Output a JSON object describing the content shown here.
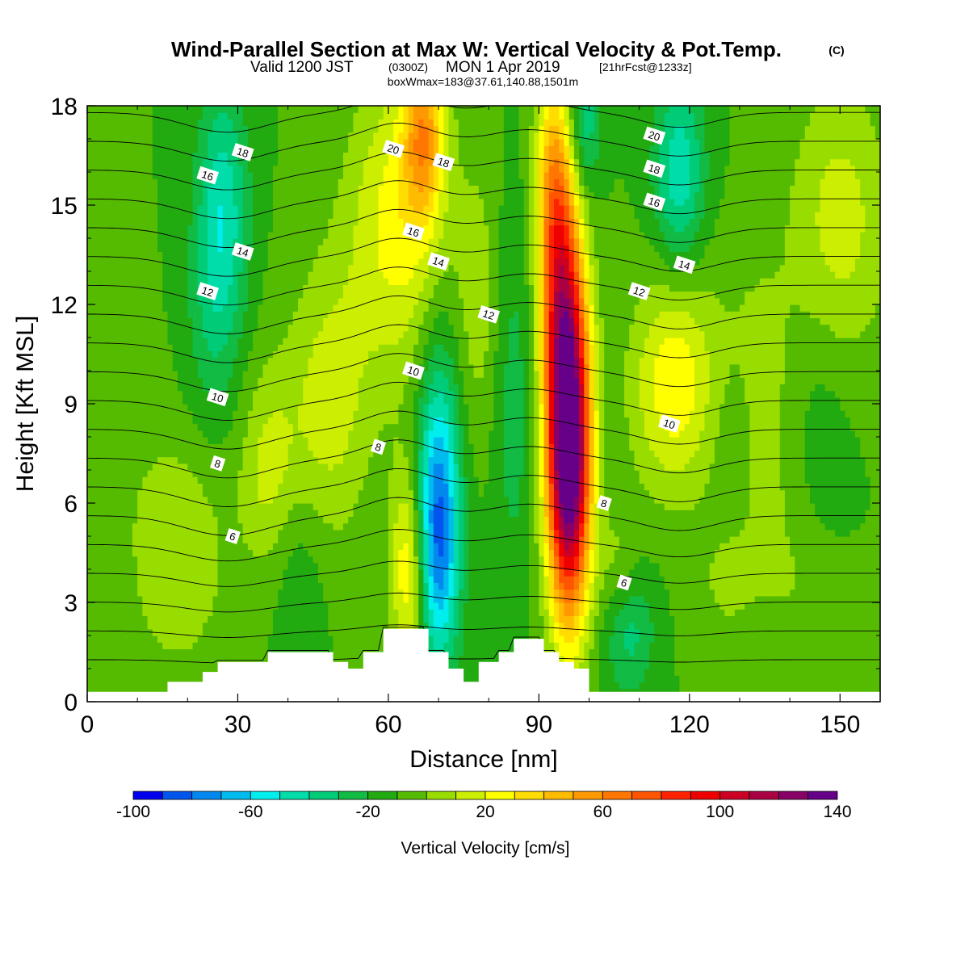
{
  "chart_data": {
    "type": "heatmap",
    "title": {
      "main": "Wind-Parallel Section at Max W: Vertical Velocity & Pot.Temp.",
      "copyright": "(C)",
      "valid_prefix": "Valid 1200 JST",
      "valid_utc": "(0300Z)",
      "valid_date": "MON 1 Apr 2019",
      "forecast": "[21hrFcst@1233z]",
      "box_info": "boxWmax=183@37.61,140.88,1501m"
    },
    "xlabel": "Distance [nm]",
    "ylabel": "Height [Kft MSL]",
    "xlim": [
      0,
      158
    ],
    "ylim": [
      0,
      18
    ],
    "xticks": [
      0,
      30,
      60,
      90,
      120,
      150
    ],
    "yticks": [
      0,
      3,
      6,
      9,
      12,
      15,
      18
    ],
    "background_value": -10,
    "velocity_features": [
      {
        "x": 96,
        "y": 7.0,
        "sx": 3.0,
        "sy": 3.2,
        "v": 150
      },
      {
        "x": 95,
        "y": 11.5,
        "sx": 3.0,
        "sy": 3.0,
        "v": 80
      },
      {
        "x": 93,
        "y": 15.5,
        "sx": 2.6,
        "sy": 2.6,
        "v": 55
      },
      {
        "x": 67,
        "y": 17.2,
        "sx": 2.8,
        "sy": 1.8,
        "v": 55
      },
      {
        "x": 64,
        "y": 4.0,
        "sx": 2.5,
        "sy": 2.2,
        "v": 40
      },
      {
        "x": 62,
        "y": 14.5,
        "sx": 7.0,
        "sy": 3.2,
        "v": 35
      },
      {
        "x": 48,
        "y": 9.0,
        "sx": 6.0,
        "sy": 3.0,
        "v": 25
      },
      {
        "x": 36,
        "y": 7.0,
        "sx": 4.0,
        "sy": 2.2,
        "v": 22
      },
      {
        "x": 18,
        "y": 4.5,
        "sx": 7.0,
        "sy": 2.5,
        "v": 20
      },
      {
        "x": 78,
        "y": 12.0,
        "sx": 3.0,
        "sy": 3.0,
        "v": 15
      },
      {
        "x": 117,
        "y": 9.6,
        "sx": 6.0,
        "sy": 2.3,
        "v": 38
      },
      {
        "x": 106,
        "y": 4.0,
        "sx": 3.0,
        "sy": 1.3,
        "v": 15
      },
      {
        "x": 127,
        "y": 3.5,
        "sx": 5.0,
        "sy": 1.5,
        "v": 10
      },
      {
        "x": 143,
        "y": 3.5,
        "sx": 6.0,
        "sy": 1.8,
        "v": 10
      },
      {
        "x": 150,
        "y": 14.5,
        "sx": 7.0,
        "sy": 3.0,
        "v": 25
      },
      {
        "x": 133,
        "y": 11.0,
        "sx": 6.0,
        "sy": 2.5,
        "v": 10
      },
      {
        "x": 137,
        "y": 7.0,
        "sx": 7.0,
        "sy": 2.5,
        "v": 12
      },
      {
        "x": 5,
        "y": 9.5,
        "sx": 6.0,
        "sy": 2.5,
        "v": 5
      },
      {
        "x": 70,
        "y": 4.6,
        "sx": 3.0,
        "sy": 2.6,
        "v": -55
      },
      {
        "x": 70,
        "y": 7.5,
        "sx": 3.0,
        "sy": 3.0,
        "v": -30
      },
      {
        "x": 27,
        "y": 15.0,
        "sx": 3.5,
        "sy": 2.6,
        "v": -35
      },
      {
        "x": 25,
        "y": 11.5,
        "sx": 4.0,
        "sy": 2.5,
        "v": -15
      },
      {
        "x": 118,
        "y": 16.0,
        "sx": 3.5,
        "sy": 2.0,
        "v": -38
      },
      {
        "x": 99,
        "y": 17.5,
        "sx": 2.2,
        "sy": 1.5,
        "v": -30
      },
      {
        "x": 85,
        "y": 9.0,
        "sx": 3.0,
        "sy": 4.0,
        "v": -15
      },
      {
        "x": 108,
        "y": 2.2,
        "sx": 3.5,
        "sy": 1.4,
        "v": -25
      },
      {
        "x": 128,
        "y": 8.5,
        "sx": 4.0,
        "sy": 2.0,
        "v": -8
      },
      {
        "x": 145,
        "y": 7.5,
        "sx": 5.0,
        "sy": 3.0,
        "v": -12
      },
      {
        "x": 42,
        "y": 4.0,
        "sx": 4.0,
        "sy": 2.0,
        "v": -10
      }
    ],
    "terrain": [
      [
        0,
        0.3
      ],
      [
        15,
        0.3
      ],
      [
        16,
        0.6
      ],
      [
        22,
        0.6
      ],
      [
        23,
        0.9
      ],
      [
        25,
        0.9
      ],
      [
        26,
        1.2
      ],
      [
        35,
        1.2
      ],
      [
        36,
        1.5
      ],
      [
        48,
        1.5
      ],
      [
        49,
        1.2
      ],
      [
        51,
        1.2
      ],
      [
        52,
        1.0
      ],
      [
        54,
        1.0
      ],
      [
        55,
        1.5
      ],
      [
        58,
        1.5
      ],
      [
        59,
        2.2
      ],
      [
        67,
        2.2
      ],
      [
        68,
        1.5
      ],
      [
        71,
        1.5
      ],
      [
        72,
        1.0
      ],
      [
        74,
        1.0
      ],
      [
        75,
        0.6
      ],
      [
        77,
        0.6
      ],
      [
        78,
        1.2
      ],
      [
        81,
        1.2
      ],
      [
        82,
        1.5
      ],
      [
        84,
        1.5
      ],
      [
        85,
        1.9
      ],
      [
        90,
        1.9
      ],
      [
        91,
        1.5
      ],
      [
        93,
        1.5
      ],
      [
        94,
        1.2
      ],
      [
        96,
        1.2
      ],
      [
        97,
        1.0
      ],
      [
        99,
        1.0
      ],
      [
        100,
        0.3
      ],
      [
        158,
        0.3
      ]
    ],
    "theta_contours": {
      "base_levels": [
        [
          0,
          0.5
        ],
        [
          158,
          0.4
        ]
      ],
      "levels": [
        1,
        2,
        3,
        4,
        5,
        6,
        7,
        8,
        9,
        10,
        11,
        12,
        13,
        14,
        15,
        16,
        17,
        18,
        19,
        20
      ],
      "labels": [
        {
          "text": "20",
          "x": 61,
          "y": 16.7
        },
        {
          "text": "18",
          "x": 31,
          "y": 16.6
        },
        {
          "text": "18",
          "x": 71,
          "y": 16.3
        },
        {
          "text": "16",
          "x": 24,
          "y": 15.9
        },
        {
          "text": "20",
          "x": 113,
          "y": 17.1
        },
        {
          "text": "18",
          "x": 113,
          "y": 16.1
        },
        {
          "text": "16",
          "x": 113,
          "y": 15.1
        },
        {
          "text": "16",
          "x": 65,
          "y": 14.2
        },
        {
          "text": "14",
          "x": 31,
          "y": 13.6
        },
        {
          "text": "14",
          "x": 70,
          "y": 13.3
        },
        {
          "text": "14",
          "x": 119,
          "y": 13.2
        },
        {
          "text": "12",
          "x": 24,
          "y": 12.4
        },
        {
          "text": "12",
          "x": 110,
          "y": 12.4
        },
        {
          "text": "12",
          "x": 80,
          "y": 11.7
        },
        {
          "text": "10",
          "x": 65,
          "y": 10.0
        },
        {
          "text": "10",
          "x": 26,
          "y": 9.2
        },
        {
          "text": "10",
          "x": 116,
          "y": 8.4
        },
        {
          "text": "8",
          "x": 58,
          "y": 7.7
        },
        {
          "text": "8",
          "x": 26,
          "y": 7.2
        },
        {
          "text": "8",
          "x": 103,
          "y": 6.0
        },
        {
          "text": "6",
          "x": 29,
          "y": 5.0
        },
        {
          "text": "6",
          "x": 107,
          "y": 3.6
        }
      ]
    },
    "colorbar": {
      "label": "Vertical Velocity [cm/s]",
      "min": -100,
      "max": 140,
      "step": 10,
      "tick_labels": [
        "-100",
        "-60",
        "-20",
        "20",
        "60",
        "100",
        "140"
      ],
      "colors": [
        "#0000ee",
        "#0055ee",
        "#0088ee",
        "#00bbee",
        "#00eeee",
        "#00ddaa",
        "#00cc77",
        "#11bb44",
        "#22aa11",
        "#55bb00",
        "#99dd00",
        "#ccee00",
        "#ffff00",
        "#ffdd00",
        "#ffbb00",
        "#ff9900",
        "#ff7700",
        "#ff5500",
        "#ff2200",
        "#ee0000",
        "#cc0022",
        "#aa0044",
        "#880066",
        "#660088"
      ]
    }
  }
}
